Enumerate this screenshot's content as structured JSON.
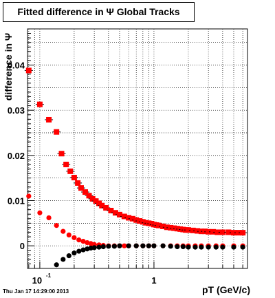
{
  "title": "Fitted difference in Ψ   Global Tracks",
  "timestamp": "Thu Jan 17 14:29:00 2013",
  "chart_data": {
    "type": "scatter",
    "title": "Fitted difference in Ψ   Global Tracks",
    "xlabel": "pT (GeV/c)",
    "ylabel": "difference in Ψ",
    "x_scale": "log",
    "xlim": [
      0.078,
      6.6
    ],
    "ylim": [
      -0.005,
      0.048
    ],
    "grid": true,
    "x_ticks": [
      {
        "value": 0.1,
        "base": "10",
        "exp": "-1"
      },
      {
        "value": 1,
        "label": "1"
      }
    ],
    "y_ticks": [
      {
        "value": 0,
        "label": "0"
      },
      {
        "value": 0.01,
        "label": "0.01"
      },
      {
        "value": 0.02,
        "label": "0.02"
      },
      {
        "value": 0.03,
        "label": "0.03"
      },
      {
        "value": 0.04,
        "label": "0.04"
      }
    ],
    "series": [
      {
        "marker": "square",
        "color": "#ff0000",
        "x": [
          0.08,
          0.1,
          0.12,
          0.14,
          0.155,
          0.17,
          0.185,
          0.2,
          0.215,
          0.23,
          0.25,
          0.27,
          0.29,
          0.31,
          0.33,
          0.35,
          0.38,
          0.42,
          0.46,
          0.5,
          0.55,
          0.6,
          0.65,
          0.7,
          0.75,
          0.8,
          0.85,
          0.9,
          0.95,
          1.0,
          1.05,
          1.1,
          1.2,
          1.3,
          1.4,
          1.5,
          1.6,
          1.7,
          1.8,
          1.9,
          2.0,
          2.2,
          2.4,
          2.6,
          2.8,
          3.0,
          3.3,
          3.6,
          4.0,
          4.5,
          5.0,
          5.5,
          6.0
        ],
        "y": [
          0.0388,
          0.0313,
          0.0279,
          0.0252,
          0.0204,
          0.018,
          0.0165,
          0.0151,
          0.0139,
          0.0128,
          0.0119,
          0.0111,
          0.0104,
          0.0099,
          0.0094,
          0.0089,
          0.0084,
          0.0078,
          0.0073,
          0.0069,
          0.0065,
          0.0062,
          0.006,
          0.0057,
          0.0055,
          0.0053,
          0.0051,
          0.005,
          0.0049,
          0.0047,
          0.0046,
          0.0045,
          0.0043,
          0.0041,
          0.004,
          0.0039,
          0.0038,
          0.0037,
          0.0036,
          0.0035,
          0.0035,
          0.0034,
          0.0033,
          0.0032,
          0.0032,
          0.0031,
          0.0031,
          0.003,
          0.003,
          0.003,
          0.0029,
          0.0029,
          0.0029
        ]
      },
      {
        "marker": "circle",
        "color": "#ff0000",
        "x": [
          0.08,
          0.1,
          0.12,
          0.14,
          0.16,
          0.18,
          0.2,
          0.22,
          0.24,
          0.26,
          0.28,
          0.3,
          0.33,
          0.36,
          0.4,
          0.45,
          0.5,
          0.55,
          0.6,
          0.7,
          0.8,
          0.9,
          1.0,
          1.2,
          1.4,
          1.6,
          1.8,
          2.0,
          2.3,
          2.6,
          3.0,
          3.5,
          4.0,
          5.0,
          6.0
        ],
        "y": [
          0.011,
          0.0073,
          0.0062,
          0.0045,
          0.0032,
          0.0024,
          0.0018,
          0.0013,
          0.001,
          0.0007,
          0.0005,
          0.0003,
          0.0002,
          0.0001,
          0.0,
          0.0,
          0.0,
          0.0,
          0.0,
          0.0,
          0.0,
          0.0,
          0.0,
          0.0,
          0.0,
          0.0,
          0.0,
          0.0,
          0.0,
          0.0,
          0.0,
          0.0,
          0.0,
          0.0,
          0.0
        ]
      },
      {
        "marker": "circle",
        "color": "#000000",
        "x": [
          0.14,
          0.16,
          0.18,
          0.2,
          0.22,
          0.24,
          0.26,
          0.28,
          0.3,
          0.33,
          0.36,
          0.4,
          0.45,
          0.5,
          0.6,
          0.7,
          0.8,
          0.9,
          1.0,
          1.2,
          1.4,
          1.6,
          1.8,
          2.0,
          2.3,
          2.6,
          3.0,
          3.5,
          4.0,
          5.0,
          6.0
        ],
        "y": [
          -0.0042,
          -0.003,
          -0.0022,
          -0.0016,
          -0.0012,
          -0.0009,
          -0.0007,
          -0.0005,
          -0.0004,
          -0.0003,
          -0.0002,
          -0.0001,
          -0.0001,
          0.0,
          0.0,
          0.0,
          0.0,
          0.0,
          0.0,
          0.0,
          -0.0001,
          -0.0002,
          -0.0002,
          -0.0003,
          -0.0003,
          -0.0003,
          -0.0003,
          -0.0003,
          -0.0003,
          -0.0003,
          -0.0003
        ]
      }
    ]
  }
}
